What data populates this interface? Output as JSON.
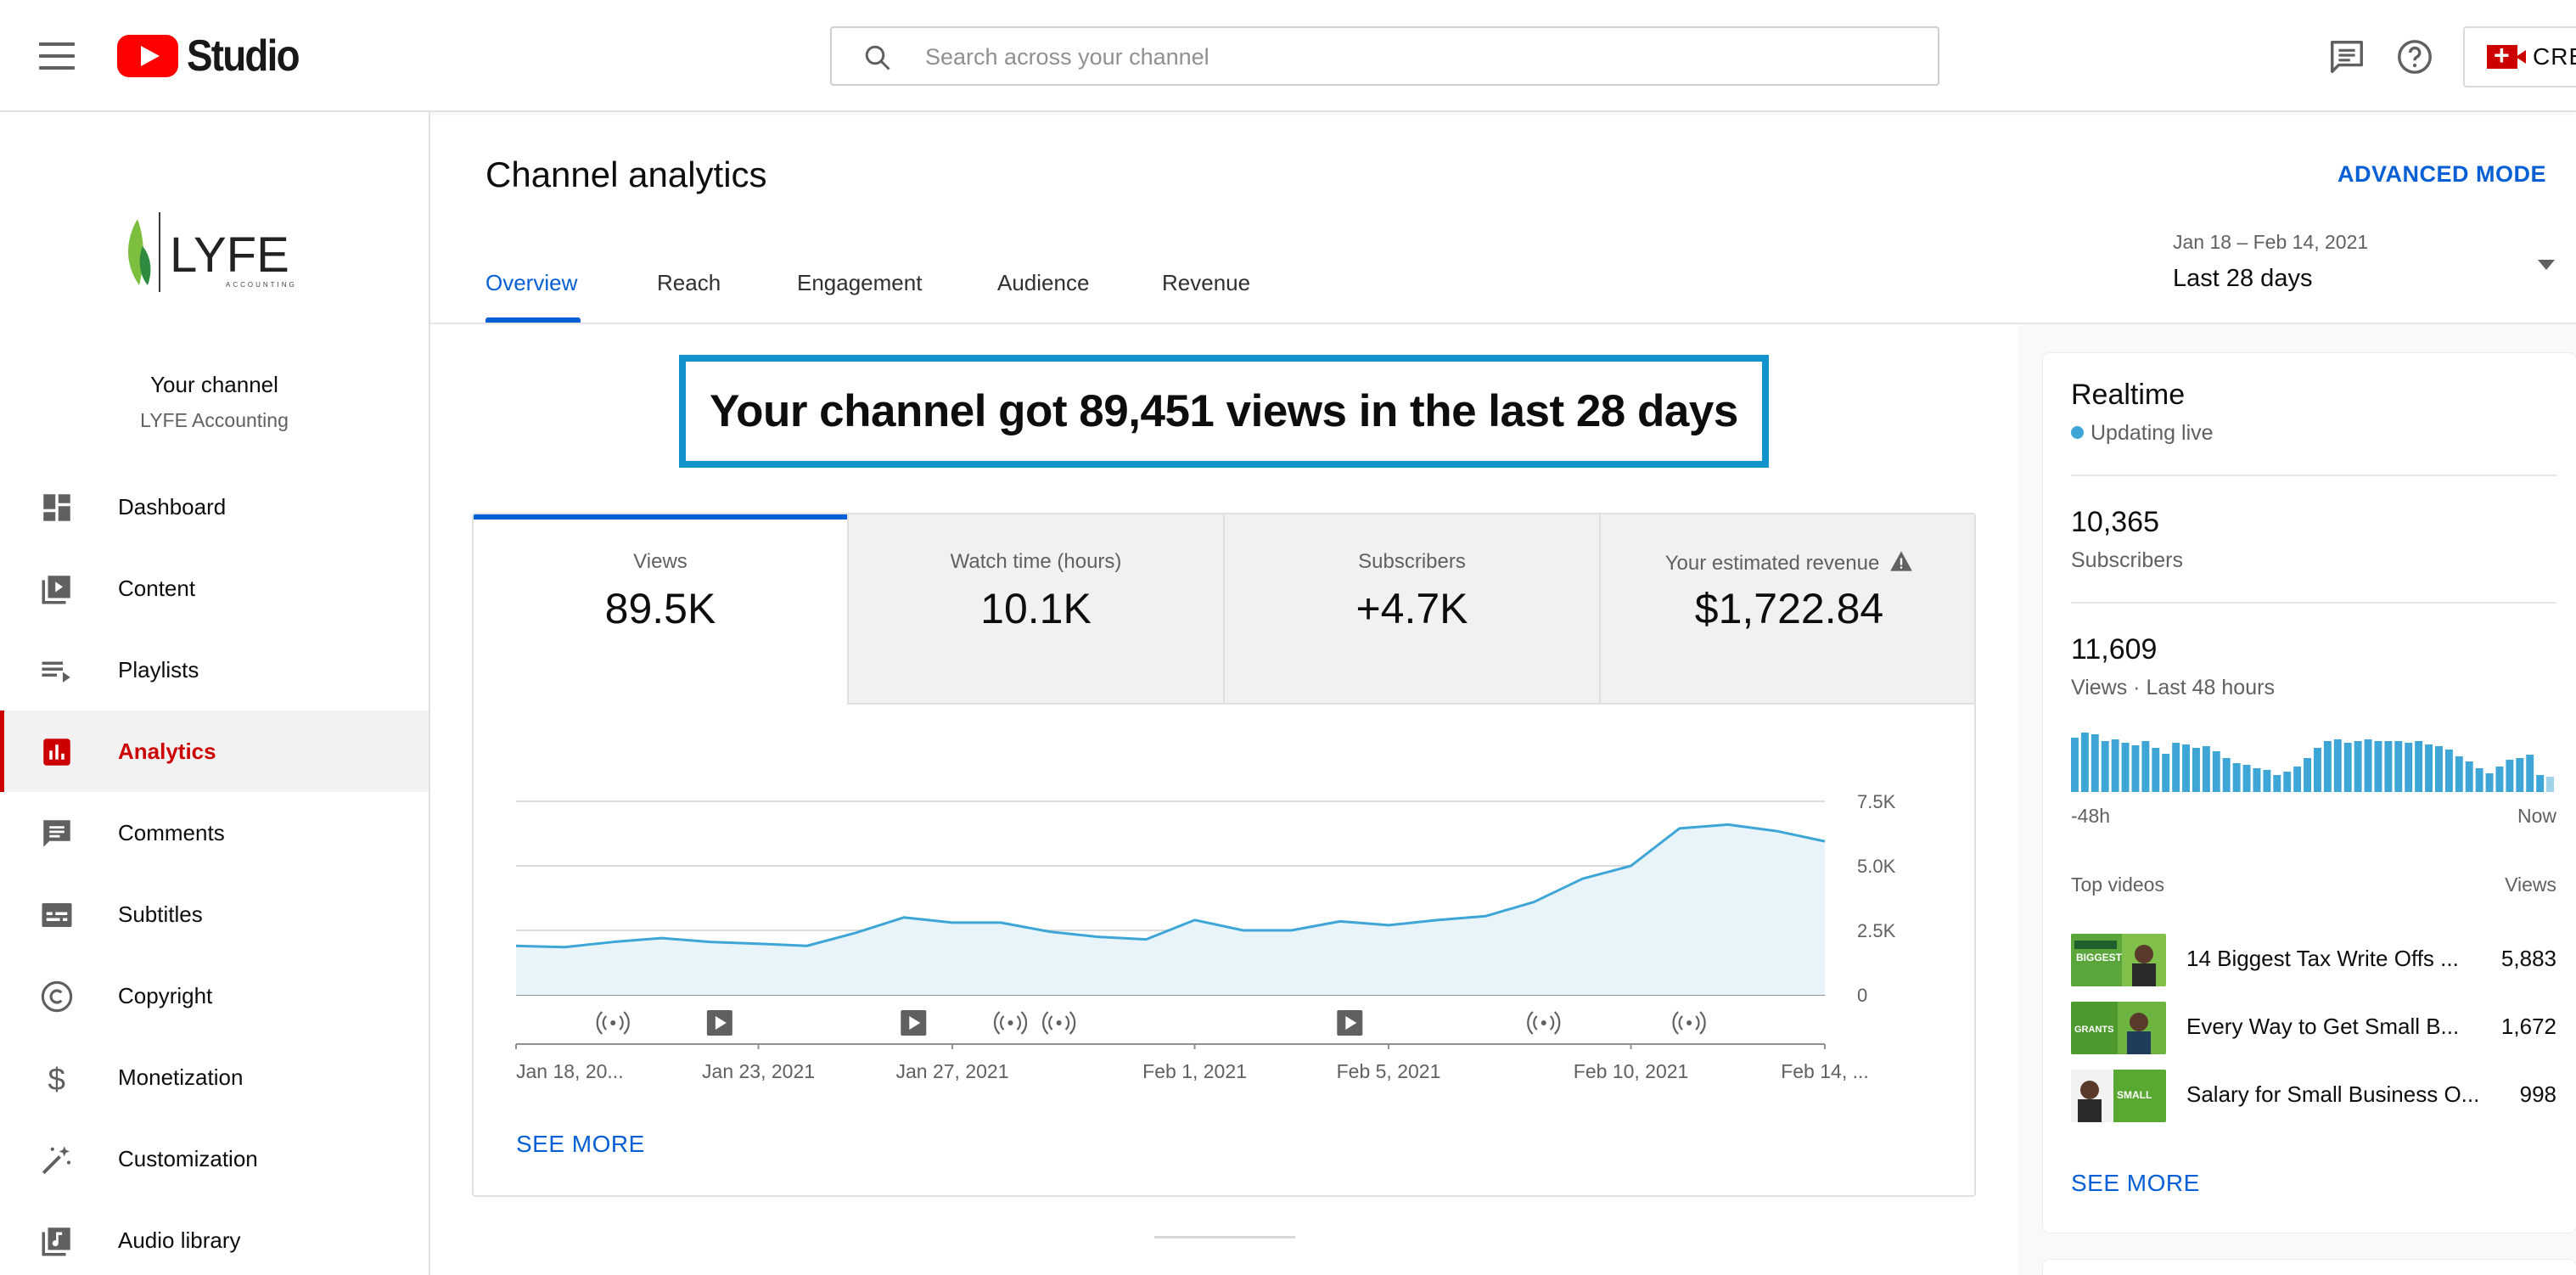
{
  "app": {
    "logo_text": "Studio",
    "search_placeholder": "Search across your channel",
    "create_label": "CRE"
  },
  "sidebar": {
    "channel_logo_text": "LYFE",
    "channel_logo_subtext": "ACCOUNTING",
    "channel_title": "Your channel",
    "channel_name": "LYFE Accounting",
    "items": [
      {
        "label": "Dashboard",
        "icon": "dashboard-icon"
      },
      {
        "label": "Content",
        "icon": "content-icon"
      },
      {
        "label": "Playlists",
        "icon": "playlists-icon"
      },
      {
        "label": "Analytics",
        "icon": "analytics-icon",
        "active": true
      },
      {
        "label": "Comments",
        "icon": "comments-icon"
      },
      {
        "label": "Subtitles",
        "icon": "subtitles-icon"
      },
      {
        "label": "Copyright",
        "icon": "copyright-icon"
      },
      {
        "label": "Monetization",
        "icon": "monetization-icon"
      },
      {
        "label": "Customization",
        "icon": "customization-icon"
      },
      {
        "label": "Audio library",
        "icon": "audio-library-icon"
      }
    ]
  },
  "main": {
    "title": "Channel analytics",
    "advanced_mode": "ADVANCED MODE",
    "tabs": [
      {
        "label": "Overview",
        "active": true
      },
      {
        "label": "Reach"
      },
      {
        "label": "Engagement"
      },
      {
        "label": "Audience"
      },
      {
        "label": "Revenue"
      }
    ],
    "date_range": {
      "range": "Jan 18 – Feb 14, 2021",
      "label": "Last 28 days"
    },
    "headline": "Your channel got 89,451 views in the last 28 days",
    "metrics": [
      {
        "label": "Views",
        "value": "89.5K",
        "active": true
      },
      {
        "label": "Watch time (hours)",
        "value": "10.1K"
      },
      {
        "label": "Subscribers",
        "value": "+4.7K"
      },
      {
        "label": "Your estimated revenue",
        "value": "$1,722.84",
        "warning": true
      }
    ],
    "see_more": "SEE MORE"
  },
  "chart_data": {
    "type": "area",
    "series": [
      {
        "values": [
          1900,
          1850,
          2050,
          2200,
          2050,
          1980,
          1900,
          2400,
          3000,
          2800,
          2800,
          2450,
          2250,
          2150,
          2900,
          2500,
          2500,
          2850,
          2700,
          2900,
          3050,
          3600,
          4500,
          5000,
          6450,
          6600,
          6350,
          5950
        ]
      }
    ],
    "y_ticks": [
      "7.5K",
      "5.0K",
      "2.5K",
      "0"
    ],
    "ylim": [
      0,
      7500
    ],
    "x_tick_labels": [
      "Jan 18, 20...",
      "Jan 23, 2021",
      "Jan 27, 2021",
      "Feb 1, 2021",
      "Feb 5, 2021",
      "Feb 10, 2021",
      "Feb 14, ..."
    ],
    "x_tick_index": [
      0,
      5,
      9,
      14,
      18,
      23,
      27
    ],
    "markers": [
      {
        "index": 2,
        "kind": "live"
      },
      {
        "index": 4.2,
        "kind": "video"
      },
      {
        "index": 8.2,
        "kind": "video"
      },
      {
        "index": 10.2,
        "kind": "live"
      },
      {
        "index": 11.2,
        "kind": "live"
      },
      {
        "index": 17.2,
        "kind": "video"
      },
      {
        "index": 21.2,
        "kind": "live"
      },
      {
        "index": 24.2,
        "kind": "live"
      }
    ],
    "grid": true,
    "color": "#3ea6d6",
    "fill": "#e8f3fa"
  },
  "realtime": {
    "title": "Realtime",
    "live_label": "Updating live",
    "subscribers_value": "10,365",
    "subscribers_label": "Subscribers",
    "views_value": "11,609",
    "views_label": "Views · Last 48 hours",
    "bars": [
      64,
      70,
      68,
      60,
      62,
      58,
      55,
      60,
      52,
      45,
      58,
      56,
      52,
      54,
      48,
      40,
      34,
      32,
      28,
      26,
      20,
      24,
      30,
      40,
      52,
      60,
      62,
      58,
      60,
      62,
      60,
      60,
      60,
      58,
      60,
      56,
      54,
      50,
      42,
      36,
      28,
      22,
      30,
      38,
      40,
      44,
      20,
      18
    ],
    "axis_left": "-48h",
    "axis_right": "Now",
    "top_videos_label": "Top videos",
    "views_col_label": "Views",
    "top_videos": [
      {
        "title": "14 Biggest Tax Write Offs ...",
        "views": "5,883",
        "thumb_text": "BIGGEST"
      },
      {
        "title": "Every Way to Get Small B...",
        "views": "1,672",
        "thumb_text": "GRANTS"
      },
      {
        "title": "Salary for Small Business O...",
        "views": "998",
        "thumb_text": "SMALL"
      }
    ],
    "see_more": "SEE MORE"
  },
  "colors": {
    "accent_blue": "#065fd4",
    "brand_red": "#ff0000",
    "active_red": "#cc0000",
    "headline_border": "#1293cc"
  }
}
